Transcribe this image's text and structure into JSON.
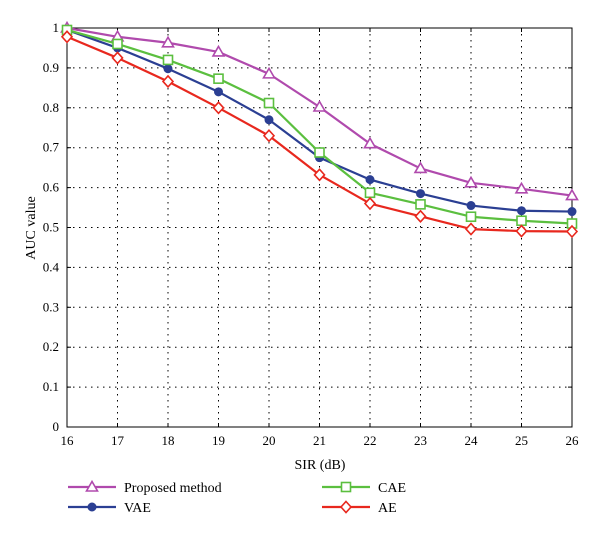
{
  "chart_data": {
    "type": "line",
    "title": "",
    "xlabel": "SIR (dB)",
    "ylabel": "AUC value",
    "x": [
      16,
      17,
      18,
      19,
      20,
      21,
      22,
      23,
      24,
      25,
      26
    ],
    "xlim": [
      16,
      26
    ],
    "ylim": [
      0,
      1
    ],
    "x_ticks": [
      "16",
      "17",
      "18",
      "19",
      "20",
      "21",
      "22",
      "23",
      "24",
      "25",
      "26"
    ],
    "y_ticks": [
      "0",
      "0.1",
      "0.2",
      "0.3",
      "0.4",
      "0.5",
      "0.6",
      "0.7",
      "0.8",
      "0.9",
      "1"
    ],
    "grid": true,
    "legend_position": "bottom",
    "series": [
      {
        "name": "Proposed method",
        "color": "#b04aad",
        "marker": "triangle",
        "values": [
          1.0,
          0.978,
          0.963,
          0.94,
          0.885,
          0.802,
          0.71,
          0.648,
          0.612,
          0.597,
          0.58
        ]
      },
      {
        "name": "VAE",
        "color": "#2b3f93",
        "marker": "circle",
        "values": [
          0.995,
          0.95,
          0.898,
          0.84,
          0.77,
          0.675,
          0.62,
          0.585,
          0.555,
          0.542,
          0.54
        ]
      },
      {
        "name": "CAE",
        "color": "#5bbf3f",
        "marker": "square",
        "values": [
          0.995,
          0.96,
          0.92,
          0.873,
          0.812,
          0.688,
          0.587,
          0.558,
          0.527,
          0.517,
          0.51
        ]
      },
      {
        "name": "AE",
        "color": "#e8281e",
        "marker": "diamond",
        "values": [
          0.978,
          0.925,
          0.866,
          0.8,
          0.73,
          0.632,
          0.56,
          0.528,
          0.496,
          0.491,
          0.49
        ]
      }
    ]
  }
}
